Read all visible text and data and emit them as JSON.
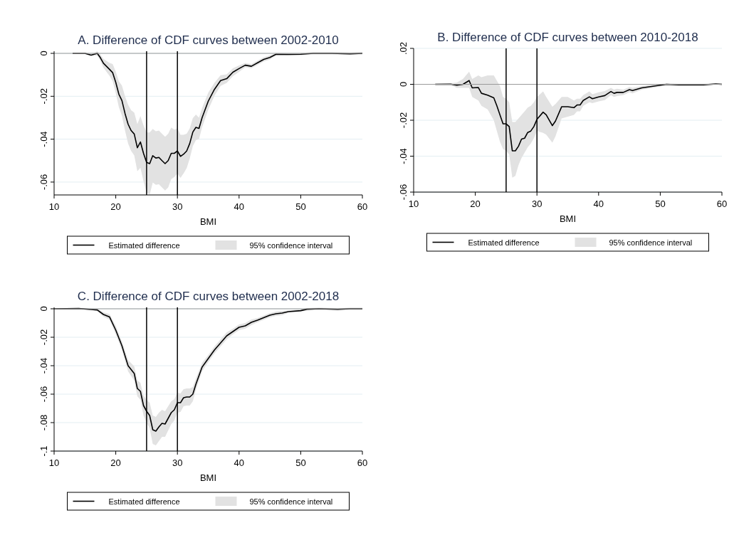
{
  "chart_data": [
    {
      "type": "line",
      "title": "A. Difference of CDF curves between 2002-2010",
      "xlabel": "BMI",
      "xlim": [
        10,
        60
      ],
      "xticks": [
        10,
        20,
        30,
        40,
        50,
        60
      ],
      "ylim": [
        -0.066,
        0.001
      ],
      "yticks": [
        {
          "value": 0,
          "label": "0"
        },
        {
          "value": -0.02,
          "label": "-.02"
        },
        {
          "value": -0.04,
          "label": "-.04"
        },
        {
          "value": -0.06,
          "label": "-.06"
        }
      ],
      "grid": "y",
      "legend": "bottom",
      "annotations": [
        "95% confidence interval"
      ],
      "ref_lines": [
        {
          "axis": "y",
          "value": 0,
          "color": "#9a9a9a"
        },
        {
          "axis": "x",
          "value": 25,
          "color": "#000000"
        },
        {
          "axis": "x",
          "value": 30,
          "color": "#000000"
        }
      ],
      "series": [
        {
          "name": "Estimated difference",
          "color": "#000000",
          "line_style": "solid",
          "x": [
            13,
            15,
            16,
            17,
            17.5,
            18,
            19,
            19.5,
            20,
            20.5,
            21,
            21.5,
            22,
            22.5,
            23,
            23.5,
            24,
            24.5,
            25,
            25.5,
            26,
            26.5,
            27,
            27.5,
            28,
            28.5,
            29,
            29.5,
            30,
            30.5,
            31,
            31.5,
            32,
            32.5,
            33,
            33.5,
            34,
            35,
            36,
            37,
            38,
            39,
            40,
            41,
            42,
            43,
            44,
            45,
            46,
            48,
            50,
            52,
            55,
            58,
            60
          ],
          "values": [
            0,
            0,
            -0.0008,
            0,
            -0.002,
            -0.0046,
            -0.0075,
            -0.009,
            -0.0135,
            -0.019,
            -0.022,
            -0.028,
            -0.033,
            -0.036,
            -0.0376,
            -0.044,
            -0.0413,
            -0.0466,
            -0.0508,
            -0.0514,
            -0.0477,
            -0.0488,
            -0.0485,
            -0.05,
            -0.0514,
            -0.05,
            -0.0466,
            -0.0466,
            -0.0455,
            -0.048,
            -0.047,
            -0.0455,
            -0.042,
            -0.0367,
            -0.0345,
            -0.035,
            -0.03,
            -0.0223,
            -0.0168,
            -0.0127,
            -0.0118,
            -0.0088,
            -0.0071,
            -0.0055,
            -0.006,
            -0.0044,
            -0.0028,
            -0.0019,
            -0.0004,
            -0.0005,
            -0.0004,
            0,
            0,
            -0.0002,
            0
          ],
          "lower": [
            -0.0003,
            -0.0003,
            -0.0011,
            -0.001,
            -0.0035,
            -0.0066,
            -0.0105,
            -0.013,
            -0.0185,
            -0.025,
            -0.029,
            -0.036,
            -0.042,
            -0.0455,
            -0.0476,
            -0.055,
            -0.0533,
            -0.0596,
            -0.0648,
            -0.0659,
            -0.0602,
            -0.0613,
            -0.061,
            -0.0625,
            -0.0639,
            -0.0625,
            -0.0586,
            -0.0576,
            -0.056,
            -0.058,
            -0.056,
            -0.0535,
            -0.049,
            -0.0432,
            -0.0405,
            -0.04,
            -0.0345,
            -0.0263,
            -0.0198,
            -0.0152,
            -0.0138,
            -0.0106,
            -0.0086,
            -0.0065,
            -0.007,
            -0.0054,
            -0.0038,
            -0.0029,
            -0.0009,
            -0.001,
            -0.0009,
            -0.0005,
            -0.0005,
            -0.0007,
            -0.0005
          ],
          "upper": [
            0.0003,
            0.0003,
            -0.0005,
            0.001,
            -0.0005,
            -0.0026,
            -0.0045,
            -0.005,
            -0.0085,
            -0.013,
            -0.015,
            -0.02,
            -0.024,
            -0.0265,
            -0.0276,
            -0.033,
            -0.0293,
            -0.0336,
            -0.0368,
            -0.0369,
            -0.0352,
            -0.0363,
            -0.036,
            -0.0375,
            -0.0389,
            -0.0375,
            -0.0346,
            -0.0356,
            -0.035,
            -0.038,
            -0.038,
            -0.0375,
            -0.035,
            -0.0302,
            -0.0285,
            -0.03,
            -0.0255,
            -0.0183,
            -0.0138,
            -0.0102,
            -0.0098,
            -0.007,
            -0.0056,
            -0.0045,
            -0.005,
            -0.0034,
            -0.0018,
            -0.0009,
            0.0001,
            0,
            0.0001,
            0.0005,
            0.0005,
            0.0003,
            0.0005
          ]
        }
      ]
    },
    {
      "type": "line",
      "title": "B. Difference of CDF curves between 2010-2018",
      "xlabel": "BMI",
      "xlim": [
        10,
        60
      ],
      "xticks": [
        10,
        20,
        30,
        40,
        50,
        60
      ],
      "ylim": [
        -0.06,
        0.02
      ],
      "yticks": [
        {
          "value": 0.02,
          "label": ".02"
        },
        {
          "value": 0,
          "label": "0"
        },
        {
          "value": -0.02,
          "label": "-.02"
        },
        {
          "value": -0.04,
          "label": "-.04"
        },
        {
          "value": -0.06,
          "label": "-.06"
        }
      ],
      "grid": "y",
      "legend": "bottom",
      "annotations": [
        "95% confidence interval"
      ],
      "ref_lines": [
        {
          "axis": "y",
          "value": 0,
          "color": "#9a9a9a"
        },
        {
          "axis": "x",
          "value": 25,
          "color": "#000000"
        },
        {
          "axis": "x",
          "value": 30,
          "color": "#000000"
        }
      ],
      "series": [
        {
          "name": "Estimated difference",
          "color": "#000000",
          "line_style": "solid",
          "x": [
            13.5,
            16,
            17,
            18,
            19,
            19.5,
            20.5,
            21,
            22,
            23,
            23.5,
            24,
            24.5,
            25,
            25.5,
            26,
            26.5,
            27,
            27.5,
            28,
            28.5,
            29,
            29.5,
            30,
            31,
            31.5,
            32.5,
            33,
            34,
            35,
            36,
            36.5,
            37,
            37.5,
            38.5,
            39,
            40,
            41,
            42,
            42.5,
            43,
            44,
            45,
            45.5,
            47,
            48,
            50,
            51,
            53,
            55,
            57,
            59,
            60
          ],
          "values": [
            0,
            0.0001,
            -0.0005,
            0,
            0.0021,
            -0.002,
            -0.0018,
            -0.005,
            -0.006,
            -0.0075,
            -0.012,
            -0.017,
            -0.022,
            -0.022,
            -0.0235,
            -0.037,
            -0.037,
            -0.0345,
            -0.0305,
            -0.03,
            -0.0268,
            -0.026,
            -0.0235,
            -0.0195,
            -0.0155,
            -0.017,
            -0.023,
            -0.0205,
            -0.0125,
            -0.0125,
            -0.013,
            -0.0115,
            -0.0115,
            -0.009,
            -0.007,
            -0.008,
            -0.007,
            -0.0063,
            -0.004,
            -0.005,
            -0.0045,
            -0.0045,
            -0.003,
            -0.0035,
            -0.002,
            -0.0015,
            -0.0005,
            0,
            -0.0003,
            -0.0003,
            -0.0003,
            0.0002,
            0
          ],
          "lower": [
            -0.0005,
            -0.0004,
            -0.002,
            -0.002,
            -0.002,
            -0.007,
            -0.009,
            -0.012,
            -0.014,
            -0.02,
            -0.026,
            -0.032,
            -0.036,
            -0.037,
            -0.039,
            -0.052,
            -0.051,
            -0.045,
            -0.041,
            -0.038,
            -0.035,
            -0.033,
            -0.03,
            -0.026,
            -0.027,
            -0.028,
            -0.0325,
            -0.029,
            -0.019,
            -0.018,
            -0.017,
            -0.015,
            -0.015,
            -0.012,
            -0.01,
            -0.0105,
            -0.0095,
            -0.0088,
            -0.006,
            -0.007,
            -0.0065,
            -0.006,
            -0.0045,
            -0.005,
            -0.003,
            -0.0025,
            -0.0012,
            -0.0007,
            -0.001,
            -0.001,
            -0.001,
            -0.0003,
            -0.0005
          ],
          "upper": [
            0.0005,
            0.0006,
            0.001,
            0.003,
            0.007,
            0.003,
            0.005,
            0.004,
            0.005,
            0.005,
            0.002,
            -0.001,
            -0.007,
            -0.008,
            -0.01,
            -0.021,
            -0.021,
            -0.019,
            -0.017,
            -0.015,
            -0.013,
            -0.012,
            -0.01,
            -0.007,
            -0.004,
            -0.007,
            -0.0125,
            -0.011,
            -0.007,
            -0.007,
            -0.009,
            -0.008,
            -0.008,
            -0.006,
            -0.004,
            -0.0055,
            -0.0045,
            -0.0038,
            -0.002,
            -0.003,
            -0.0025,
            -0.003,
            -0.0015,
            -0.002,
            -0.001,
            -0.0005,
            0.0002,
            0.0007,
            0.0004,
            0.0004,
            0.0004,
            0.0007,
            0.0005
          ]
        }
      ]
    },
    {
      "type": "line",
      "title": "C. Difference of CDF curves between 2002-2018",
      "xlabel": "BMI",
      "xlim": [
        10,
        60
      ],
      "xticks": [
        10,
        20,
        30,
        40,
        50,
        60
      ],
      "ylim": [
        -0.1,
        0.001
      ],
      "yticks": [
        {
          "value": 0,
          "label": "0"
        },
        {
          "value": -0.02,
          "label": "-.02"
        },
        {
          "value": -0.04,
          "label": "-.04"
        },
        {
          "value": -0.06,
          "label": "-.06"
        },
        {
          "value": -0.08,
          "label": "-.08"
        },
        {
          "value": -0.1,
          "label": "-.1"
        }
      ],
      "grid": "y",
      "legend": "bottom",
      "annotations": [
        "95% confidence interval"
      ],
      "ref_lines": [
        {
          "axis": "y",
          "value": 0,
          "color": "#9a9a9a"
        },
        {
          "axis": "x",
          "value": 25,
          "color": "#000000"
        },
        {
          "axis": "x",
          "value": 30,
          "color": "#000000"
        }
      ],
      "series": [
        {
          "name": "Estimated difference",
          "color": "#000000",
          "line_style": "solid",
          "x": [
            10,
            14,
            16,
            17,
            18,
            19,
            20,
            21,
            22,
            23,
            23.5,
            24,
            24.5,
            25,
            25.5,
            26,
            26.5,
            27,
            27.5,
            28,
            28.5,
            29,
            29.5,
            30,
            30.5,
            31,
            31.5,
            32,
            32.5,
            33,
            34,
            35,
            36,
            37,
            38,
            39,
            40,
            41,
            42,
            43,
            44,
            45,
            46,
            47,
            48,
            50,
            51,
            53,
            56,
            58,
            60
          ],
          "values": [
            0,
            0.0002,
            -0.0005,
            -0.0008,
            -0.004,
            -0.0058,
            -0.015,
            -0.026,
            -0.04,
            -0.0455,
            -0.056,
            -0.058,
            -0.068,
            -0.072,
            -0.075,
            -0.085,
            -0.086,
            -0.083,
            -0.0805,
            -0.081,
            -0.077,
            -0.073,
            -0.071,
            -0.066,
            -0.066,
            -0.0625,
            -0.062,
            -0.062,
            -0.06,
            -0.053,
            -0.041,
            -0.035,
            -0.029,
            -0.024,
            -0.019,
            -0.016,
            -0.013,
            -0.012,
            -0.0095,
            -0.008,
            -0.0063,
            -0.0045,
            -0.0035,
            -0.003,
            -0.002,
            -0.0013,
            -0.0003,
            0,
            -0.0004,
            0,
            0
          ],
          "lower": [
            -0.0003,
            -0.0001,
            -0.0008,
            -0.0018,
            -0.0055,
            -0.0078,
            -0.018,
            -0.029,
            -0.044,
            -0.0505,
            -0.0615,
            -0.064,
            -0.075,
            -0.08,
            -0.084,
            -0.095,
            -0.096,
            -0.093,
            -0.09,
            -0.09,
            -0.0855,
            -0.081,
            -0.0785,
            -0.073,
            -0.0725,
            -0.0685,
            -0.068,
            -0.068,
            -0.065,
            -0.057,
            -0.044,
            -0.0375,
            -0.0315,
            -0.0265,
            -0.0215,
            -0.018,
            -0.015,
            -0.014,
            -0.0115,
            -0.0095,
            -0.0078,
            -0.006,
            -0.005,
            -0.0045,
            -0.0028,
            -0.0021,
            -0.0011,
            -0.0008,
            -0.0012,
            -0.0008,
            -0.0008
          ],
          "upper": [
            0.0003,
            0.0005,
            -0.0002,
            0.0002,
            -0.0025,
            -0.0038,
            -0.012,
            -0.023,
            -0.036,
            -0.0405,
            -0.0505,
            -0.052,
            -0.061,
            -0.064,
            -0.066,
            -0.075,
            -0.076,
            -0.073,
            -0.071,
            -0.072,
            -0.0685,
            -0.065,
            -0.0635,
            -0.059,
            -0.0595,
            -0.0565,
            -0.056,
            -0.056,
            -0.055,
            -0.049,
            -0.038,
            -0.0325,
            -0.0265,
            -0.0215,
            -0.0165,
            -0.014,
            -0.011,
            -0.01,
            -0.0075,
            -0.0065,
            -0.0048,
            -0.003,
            -0.002,
            -0.0015,
            -0.0012,
            -0.0005,
            0.0005,
            0.0008,
            0.0004,
            0.0008,
            0.0008
          ]
        }
      ]
    }
  ]
}
